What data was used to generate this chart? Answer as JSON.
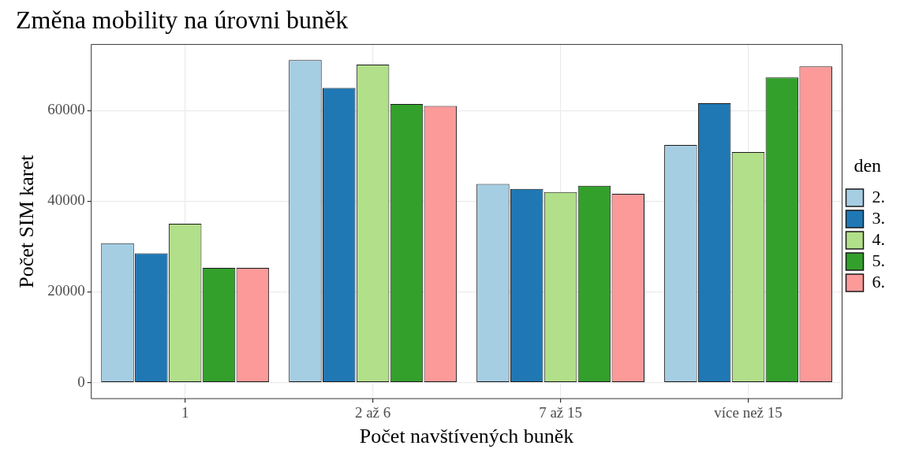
{
  "chart_data": {
    "type": "bar",
    "title": "Změna mobility na úrovni buněk",
    "xlabel": "Počet navštívených buněk",
    "ylabel": "Počet SIM karet",
    "legend_title": "den",
    "categories": [
      "1",
      "2 až 6",
      "7 až 15",
      "více než 15"
    ],
    "series": [
      {
        "name": "2.",
        "color": "#a6cee3",
        "values": [
          30700,
          71100,
          43800,
          52400
        ]
      },
      {
        "name": "3.",
        "color": "#1f78b4",
        "values": [
          28500,
          65000,
          42700,
          61600
        ]
      },
      {
        "name": "4.",
        "color": "#b2df8a",
        "values": [
          35000,
          70100,
          42000,
          50800
        ]
      },
      {
        "name": "5.",
        "color": "#33a02c",
        "values": [
          25300,
          61400,
          43400,
          67300
        ]
      },
      {
        "name": "6.",
        "color": "#fb9a99",
        "values": [
          25300,
          61000,
          41600,
          69700
        ]
      }
    ],
    "ylim": [
      -3550,
      74550
    ],
    "yticks": [
      0,
      20000,
      40000,
      60000
    ],
    "grid": true,
    "legend": "right"
  }
}
